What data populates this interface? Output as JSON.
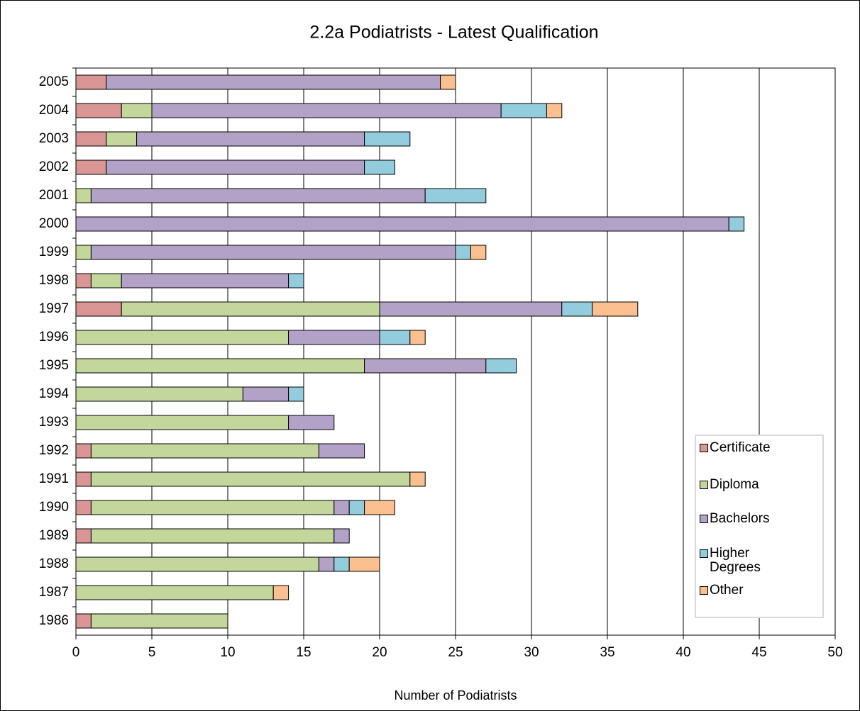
{
  "chart_data": {
    "type": "stacked_barh",
    "title": "2.2a Podiatrists - Latest Qualification",
    "x_label": "Number of Podiatrists",
    "categories": [
      "2005",
      "2004",
      "2003",
      "2002",
      "2001",
      "2000",
      "1999",
      "1998",
      "1997",
      "1996",
      "1995",
      "1994",
      "1993",
      "1992",
      "1991",
      "1990",
      "1989",
      "1988",
      "1987",
      "1986"
    ],
    "series": [
      {
        "name": "Certificate",
        "color": "#d99694",
        "values": [
          2,
          3,
          2,
          2,
          0,
          0,
          0,
          1,
          3,
          0,
          0,
          0,
          0,
          1,
          1,
          1,
          1,
          0,
          0,
          1
        ]
      },
      {
        "name": "Diploma",
        "color": "#c3d69b",
        "values": [
          0,
          2,
          2,
          0,
          1,
          0,
          1,
          2,
          17,
          14,
          19,
          11,
          14,
          15,
          21,
          16,
          16,
          16,
          13,
          9
        ]
      },
      {
        "name": "Bachelors",
        "color": "#b3a2c7",
        "values": [
          22,
          23,
          15,
          17,
          22,
          43,
          24,
          11,
          12,
          6,
          8,
          3,
          3,
          3,
          0,
          1,
          1,
          1,
          0,
          0
        ]
      },
      {
        "name": "Higher Degrees",
        "color": "#93cddd",
        "values": [
          0,
          3,
          3,
          2,
          4,
          1,
          1,
          1,
          2,
          2,
          2,
          1,
          0,
          0,
          0,
          1,
          0,
          1,
          0,
          0
        ]
      },
      {
        "name": "Other",
        "color": "#fac090",
        "values": [
          1,
          1,
          0,
          0,
          0,
          0,
          1,
          0,
          3,
          1,
          0,
          0,
          0,
          0,
          1,
          2,
          0,
          2,
          1,
          0
        ]
      }
    ],
    "xlim": [
      0,
      50
    ],
    "xticks": [
      0,
      5,
      10,
      15,
      20,
      25,
      30,
      35,
      40,
      45,
      50
    ],
    "grid": true
  }
}
